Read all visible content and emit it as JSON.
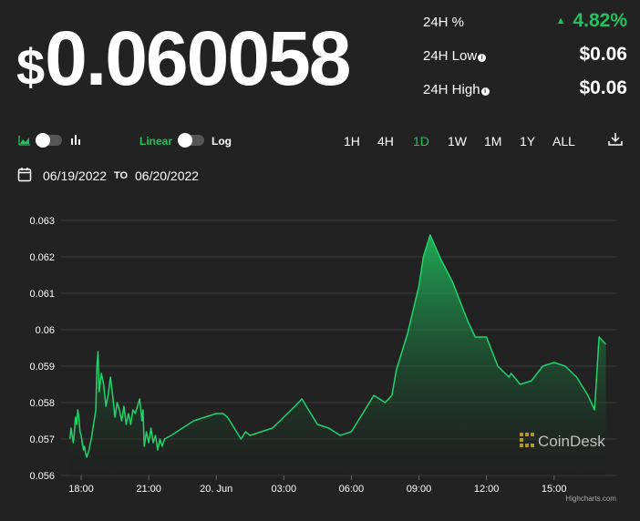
{
  "price": {
    "symbol": "$",
    "value": "0.060058"
  },
  "stats": [
    {
      "label": "24H %",
      "value": "4.82%",
      "info": false,
      "up": true
    },
    {
      "label": "24H Low",
      "value": "$0.06",
      "info": true,
      "up": false
    },
    {
      "label": "24H High",
      "value": "$0.06",
      "info": true,
      "up": false
    }
  ],
  "controls": {
    "linear_label": "Linear",
    "log_label": "Log",
    "ranges": [
      "1H",
      "4H",
      "1D",
      "1W",
      "1M",
      "1Y",
      "ALL"
    ],
    "active_range": "1D"
  },
  "dates": {
    "from": "06/19/2022",
    "to_label": "TO",
    "to": "06/20/2022"
  },
  "colors": {
    "accent": "#21c35d",
    "background": "#222222",
    "line": "#22d36a"
  },
  "watermark": "CoinDesk",
  "credits": "Highcharts.com",
  "chart_data": {
    "type": "area",
    "title": "",
    "xlabel": "",
    "ylabel": "",
    "ylim": [
      0.056,
      0.063
    ],
    "yticks": [
      "0.063",
      "0.062",
      "0.061",
      "0.06",
      "0.059",
      "0.058",
      "0.057",
      "0.056"
    ],
    "xticks": [
      "18:00",
      "21:00",
      "20. Jun",
      "03:00",
      "06:00",
      "09:00",
      "12:00",
      "15:00"
    ],
    "grid": true,
    "series": [
      {
        "x_hours": [
          -0.5,
          -0.45,
          -0.4,
          -0.35,
          -0.3,
          -0.25,
          -0.2,
          -0.15,
          -0.1,
          -0.05,
          0.0,
          0.05,
          0.1,
          0.15,
          0.2,
          0.25,
          0.35,
          0.45,
          0.55,
          0.65,
          0.7,
          0.75,
          0.8,
          0.9,
          1.0,
          1.1,
          1.2,
          1.3,
          1.4,
          1.5,
          1.6,
          1.7,
          1.8,
          1.9,
          2.0,
          2.1,
          2.2,
          2.3,
          2.4,
          2.5,
          2.6,
          2.7,
          2.75,
          2.8,
          2.9,
          3.0,
          3.1,
          3.2,
          3.3,
          3.4,
          3.5,
          3.6,
          3.7,
          4.0,
          4.5,
          5.0,
          5.5,
          6.0,
          6.3,
          6.5,
          6.7,
          6.9,
          7.1,
          7.3,
          7.5,
          8.5,
          9.0,
          9.5,
          9.8,
          10.0,
          10.5,
          11.0,
          11.5,
          12.0,
          12.5,
          13.0,
          13.5,
          13.8,
          14.0,
          14.5,
          15.0,
          15.2,
          15.5,
          16.0,
          16.5,
          17.0,
          17.2,
          17.5,
          18.0,
          18.5,
          19.0,
          19.1,
          19.5,
          20.0,
          20.5,
          21.0,
          21.5,
          22.0,
          22.5,
          22.8,
          23.0,
          23.3
        ],
        "y": [
          0.057,
          0.0573,
          0.0571,
          0.0569,
          0.0572,
          0.0576,
          0.0574,
          0.0578,
          0.0576,
          0.0572,
          0.0571,
          0.0569,
          0.0567,
          0.0568,
          0.0566,
          0.0565,
          0.0567,
          0.057,
          0.0574,
          0.0578,
          0.059,
          0.0594,
          0.0583,
          0.0588,
          0.0585,
          0.0579,
          0.0582,
          0.0587,
          0.0582,
          0.0576,
          0.058,
          0.0578,
          0.0575,
          0.0579,
          0.0574,
          0.0577,
          0.0574,
          0.0578,
          0.0577,
          0.0579,
          0.0581,
          0.0575,
          0.0578,
          0.0568,
          0.0572,
          0.0569,
          0.0573,
          0.0569,
          0.0571,
          0.0567,
          0.057,
          0.0568,
          0.057,
          0.0571,
          0.0573,
          0.0575,
          0.0576,
          0.0577,
          0.0577,
          0.0576,
          0.0574,
          0.0572,
          0.057,
          0.0572,
          0.0571,
          0.0573,
          0.0576,
          0.0579,
          0.0581,
          0.0579,
          0.0574,
          0.0573,
          0.0571,
          0.0572,
          0.0577,
          0.0582,
          0.058,
          0.0582,
          0.0589,
          0.0599,
          0.0612,
          0.062,
          0.0626,
          0.0619,
          0.0613,
          0.0605,
          0.0602,
          0.0598,
          0.0598,
          0.059,
          0.0587,
          0.0588,
          0.0585,
          0.0586,
          0.059,
          0.0591,
          0.059,
          0.0587,
          0.0582,
          0.0578,
          0.0598,
          0.0596
        ]
      }
    ]
  }
}
